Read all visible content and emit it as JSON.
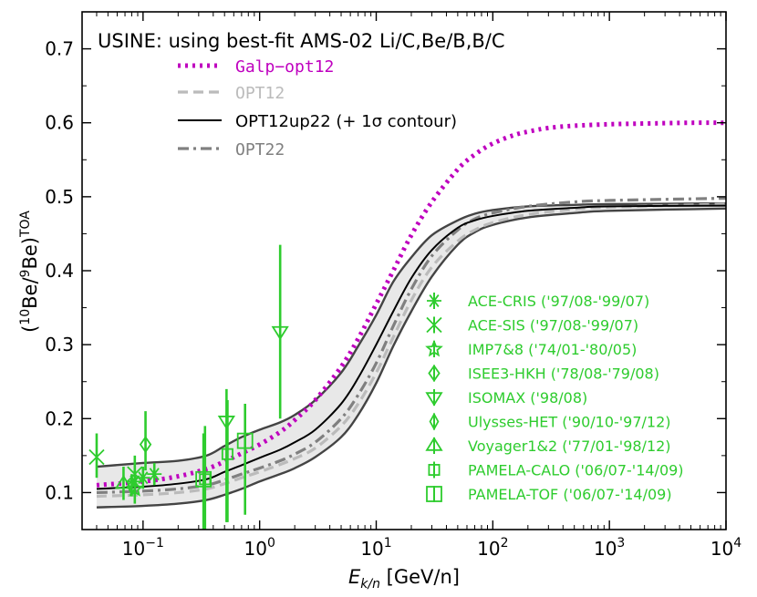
{
  "chart_data": {
    "type": "line",
    "title": "USINE: using best-fit AMS-02 Li/C,Be/B,B/C",
    "xlabel": "E_{k/n} [GeV/n]",
    "ylabel": "(10Be/9Be)TOA",
    "xscale": "log",
    "xlim": [
      0.03,
      10000
    ],
    "ylim": [
      0.05,
      0.75
    ],
    "xticks": [
      {
        "v": 0.1,
        "base": "10",
        "exp": "−1"
      },
      {
        "v": 1,
        "base": "10",
        "exp": "0"
      },
      {
        "v": 10,
        "base": "10",
        "exp": "1"
      },
      {
        "v": 100,
        "base": "10",
        "exp": "2"
      },
      {
        "v": 1000,
        "base": "10",
        "exp": "3"
      },
      {
        "v": 10000,
        "base": "10",
        "exp": "4"
      }
    ],
    "yticks": [
      "0.1",
      "0.2",
      "0.3",
      "0.4",
      "0.5",
      "0.6",
      "0.7"
    ],
    "legend_position": "top-left",
    "model_series": [
      {
        "name": "Galp−opt12",
        "color": "#bf00bf",
        "style": "dotted",
        "x": [
          0.04,
          0.1,
          0.2,
          0.35,
          0.5,
          0.7,
          1,
          1.5,
          2,
          3,
          5,
          7,
          10,
          14,
          20,
          30,
          50,
          70,
          100,
          150,
          200,
          300,
          500,
          1000,
          2000,
          5000,
          10000
        ],
        "y": [
          0.11,
          0.115,
          0.122,
          0.132,
          0.142,
          0.153,
          0.165,
          0.182,
          0.198,
          0.225,
          0.27,
          0.308,
          0.355,
          0.4,
          0.448,
          0.493,
          0.537,
          0.557,
          0.572,
          0.583,
          0.588,
          0.593,
          0.596,
          0.598,
          0.599,
          0.6,
          0.6
        ]
      },
      {
        "name": "OPT12",
        "color": "#bbbbbb",
        "style": "dashed",
        "x": [
          0.04,
          0.1,
          0.2,
          0.35,
          0.5,
          0.7,
          1,
          1.5,
          2,
          3,
          5,
          7,
          10,
          14,
          20,
          30,
          50,
          70,
          100,
          200,
          500,
          1000,
          10000
        ],
        "y": [
          0.095,
          0.097,
          0.1,
          0.105,
          0.112,
          0.12,
          0.128,
          0.138,
          0.146,
          0.16,
          0.19,
          0.22,
          0.262,
          0.31,
          0.36,
          0.405,
          0.44,
          0.455,
          0.465,
          0.476,
          0.483,
          0.486,
          0.49
        ]
      },
      {
        "name": "OPT12up22 (+ 1σ contour)",
        "color": "#000000",
        "style": "solid",
        "x": [
          0.04,
          0.1,
          0.2,
          0.35,
          0.5,
          0.7,
          1,
          1.5,
          2,
          3,
          5,
          7,
          10,
          14,
          20,
          30,
          50,
          70,
          100,
          200,
          500,
          1000,
          10000
        ],
        "y": [
          0.105,
          0.108,
          0.112,
          0.118,
          0.128,
          0.137,
          0.147,
          0.158,
          0.168,
          0.185,
          0.22,
          0.255,
          0.3,
          0.345,
          0.39,
          0.428,
          0.458,
          0.468,
          0.474,
          0.481,
          0.485,
          0.487,
          0.488
        ]
      },
      {
        "name": "OPT22",
        "color": "#808080",
        "style": "dashdot",
        "x": [
          0.04,
          0.1,
          0.2,
          0.35,
          0.5,
          0.7,
          1,
          1.5,
          2,
          3,
          5,
          7,
          10,
          14,
          20,
          30,
          50,
          70,
          100,
          200,
          500,
          1000,
          10000
        ],
        "y": [
          0.1,
          0.102,
          0.105,
          0.11,
          0.117,
          0.125,
          0.133,
          0.143,
          0.152,
          0.168,
          0.2,
          0.232,
          0.275,
          0.325,
          0.375,
          0.42,
          0.455,
          0.47,
          0.478,
          0.487,
          0.493,
          0.495,
          0.498
        ]
      }
    ],
    "contour_band": {
      "color": "#444444",
      "fill": "#e8e8e8",
      "x": [
        0.04,
        0.1,
        0.2,
        0.35,
        0.5,
        0.7,
        1,
        1.5,
        2,
        3,
        5,
        7,
        10,
        14,
        20,
        30,
        50,
        70,
        100,
        200,
        500,
        1000,
        10000
      ],
      "upper": [
        0.135,
        0.14,
        0.143,
        0.15,
        0.163,
        0.175,
        0.185,
        0.195,
        0.205,
        0.225,
        0.262,
        0.298,
        0.34,
        0.385,
        0.418,
        0.448,
        0.468,
        0.477,
        0.482,
        0.487,
        0.489,
        0.49,
        0.491
      ],
      "lower": [
        0.08,
        0.082,
        0.085,
        0.09,
        0.097,
        0.105,
        0.115,
        0.125,
        0.133,
        0.148,
        0.175,
        0.205,
        0.248,
        0.298,
        0.345,
        0.392,
        0.435,
        0.452,
        0.462,
        0.472,
        0.478,
        0.481,
        0.484
      ]
    },
    "data_color": "#2ecc2e",
    "data_series": [
      {
        "name": "ACE-CRIS ('97/08-'99/07)",
        "marker": "asterisk",
        "points": [
          {
            "x": 0.085,
            "y": 0.115,
            "lo": 0.1,
            "hi": 0.13
          },
          {
            "x": 0.1,
            "y": 0.12,
            "lo": 0.105,
            "hi": 0.135
          },
          {
            "x": 0.125,
            "y": 0.125,
            "lo": 0.11,
            "hi": 0.14
          }
        ]
      },
      {
        "name": "ACE-SIS ('97/08-'99/07)",
        "marker": "x-cross",
        "points": [
          {
            "x": 0.04,
            "y": 0.148,
            "lo": 0.12,
            "hi": 0.18
          },
          {
            "x": 0.085,
            "y": 0.125,
            "lo": 0.1,
            "hi": 0.15
          }
        ]
      },
      {
        "name": "IMP7&8 ('74/01-'80/05)",
        "marker": "star",
        "points": [
          {
            "x": 0.085,
            "y": 0.105,
            "lo": 0.085,
            "hi": 0.125
          }
        ]
      },
      {
        "name": "ISEE3-HKH ('78/08-'79/08)",
        "marker": "diamond-thin",
        "points": [
          {
            "x": 0.105,
            "y": 0.165,
            "lo": 0.13,
            "hi": 0.21
          }
        ]
      },
      {
        "name": "ISOMAX ('98/08)",
        "marker": "triangle-down",
        "points": [
          {
            "x": 0.52,
            "y": 0.197,
            "lo": 0.06,
            "hi": 0.24
          },
          {
            "x": 1.5,
            "y": 0.318,
            "lo": 0.2,
            "hi": 0.435
          }
        ]
      },
      {
        "name": "Ulysses-HET ('90/10-'97/12)",
        "marker": "diamond",
        "points": [
          {
            "x": 0.08,
            "y": 0.108,
            "lo": 0.095,
            "hi": 0.125
          }
        ]
      },
      {
        "name": "Voyager1&2 ('77/01-'98/12)",
        "marker": "triangle-up",
        "points": [
          {
            "x": 0.068,
            "y": 0.112,
            "lo": 0.09,
            "hi": 0.135
          }
        ]
      },
      {
        "name": "PAMELA-CALO ('06/07-'14/09)",
        "marker": "square-small",
        "points": [
          {
            "x": 0.34,
            "y": 0.118,
            "lo": 0.05,
            "hi": 0.19
          },
          {
            "x": 0.53,
            "y": 0.152,
            "lo": 0.06,
            "hi": 0.225
          }
        ]
      },
      {
        "name": "PAMELA-TOF ('06/07-'14/09)",
        "marker": "square",
        "points": [
          {
            "x": 0.33,
            "y": 0.118,
            "lo": 0.05,
            "hi": 0.18
          },
          {
            "x": 0.75,
            "y": 0.17,
            "lo": 0.07,
            "hi": 0.22
          }
        ]
      }
    ]
  }
}
